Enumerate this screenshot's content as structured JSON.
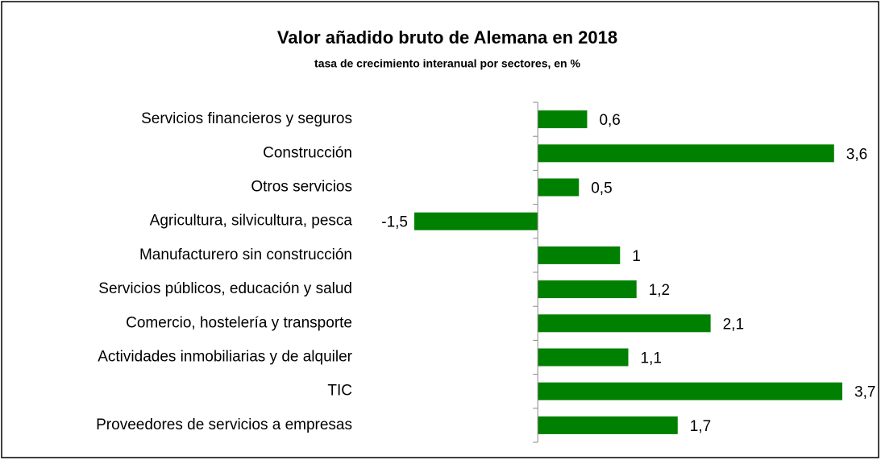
{
  "chart_data": {
    "type": "bar",
    "orientation": "horizontal",
    "title": "Valor añadido bruto de Alemana en 2018",
    "subtitle": "tasa de crecimiento interanual por sectores, en %",
    "categories": [
      "Servicios financieros y seguros",
      "Construcción",
      "Otros servicios",
      "Agricultura, silvicultura, pesca",
      "Manufacturero sin construcción",
      "Servicios públicos, educación y salud",
      "Comercio, hostelería y transporte",
      "Actividades inmobiliarias y de alquiler",
      "TIC",
      "Proveedores de servicios a empresas"
    ],
    "values": [
      0.6,
      3.6,
      0.5,
      -1.5,
      1,
      1.2,
      2.1,
      1.1,
      3.7,
      1.7
    ],
    "value_labels": [
      "0,6",
      "3,6",
      "0,5",
      "-1,5",
      "1",
      "1,2",
      "2,1",
      "1,1",
      "3,7",
      "1,7"
    ],
    "color": "#008000"
  }
}
